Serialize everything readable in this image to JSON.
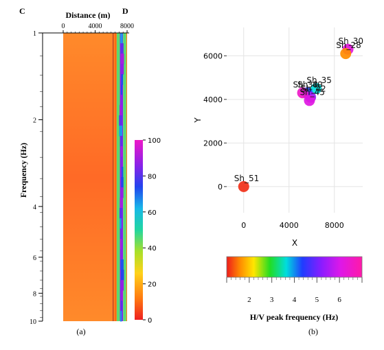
{
  "panel_a": {
    "corner_left": "C",
    "corner_right": "D",
    "x_title": "Distance (m)",
    "y_title": "Frequency (Hz)",
    "x_ticks": [
      0,
      4000,
      8000
    ],
    "y_ticks": [
      1,
      2,
      4,
      6,
      8,
      10
    ],
    "colorbar_ticks": [
      "0",
      "20",
      "40",
      "60",
      "80",
      "100"
    ],
    "caption": "(a)"
  },
  "panel_b": {
    "colorbar_ticks": [
      "2",
      "3",
      "4",
      "5",
      "6"
    ],
    "colorbar_label": "H/V peak frequency (Hz)",
    "caption": "(b)"
  },
  "chart_data": [
    {
      "type": "heatmap",
      "title": "",
      "xlabel": "Distance (m)",
      "ylabel": "Frequency (Hz)",
      "xlim": [
        0,
        8000
      ],
      "ylim": [
        1,
        10
      ],
      "y_scale": "log",
      "colorbar": {
        "min": 0,
        "max": 100,
        "ticks": [
          0,
          20,
          40,
          60,
          80,
          100
        ]
      },
      "bands": [
        {
          "from": 0,
          "to": 6200,
          "value": 8
        },
        {
          "from": 6200,
          "to": 6400,
          "value": 15
        },
        {
          "from": 6400,
          "to": 6700,
          "value": 10
        },
        {
          "from": 6700,
          "to": 7100,
          "value": 45
        },
        {
          "from": 7100,
          "to": 7500,
          "value": 85
        },
        {
          "from": 7500,
          "to": 7900,
          "value": 45
        },
        {
          "from": 7900,
          "to": 8000,
          "value": 12
        }
      ],
      "colors": {
        "low": "#ee3324",
        "mid": "#33dd88",
        "high": "#3344ee"
      }
    },
    {
      "type": "scatter",
      "title": "",
      "xlabel": "X",
      "ylabel": "Y",
      "xlim": [
        -1500,
        10500
      ],
      "ylim": [
        -1200,
        7300
      ],
      "x_ticks": [
        0,
        4000,
        8000
      ],
      "y_ticks": [
        0,
        2000,
        4000,
        6000
      ],
      "grid": true,
      "colorbar": {
        "label": "H/V peak frequency (Hz)",
        "min": 1,
        "max": 7,
        "ticks": [
          2,
          3,
          4,
          5,
          6
        ]
      },
      "points": [
        {
          "label": "Sh_51",
          "x": 0,
          "y": 0,
          "freq": 1.1
        },
        {
          "label": "Sh_35",
          "x": 6400,
          "y": 4500,
          "freq": 3.6
        },
        {
          "label": "Sh_40",
          "x": 5600,
          "y": 4300,
          "freq": 4.3
        },
        {
          "label": "Sh_42",
          "x": 5900,
          "y": 4100,
          "freq": 5.4
        },
        {
          "label": "Sh_38",
          "x": 5200,
          "y": 4300,
          "freq": 6.5
        },
        {
          "label": "Sh_45",
          "x": 5800,
          "y": 3950,
          "freq": 6.1
        },
        {
          "label": "Sh_30",
          "x": 9200,
          "y": 6300,
          "freq": 6.2
        },
        {
          "label": "Sh_28",
          "x": 9000,
          "y": 6100,
          "freq": 1.6
        }
      ]
    }
  ]
}
